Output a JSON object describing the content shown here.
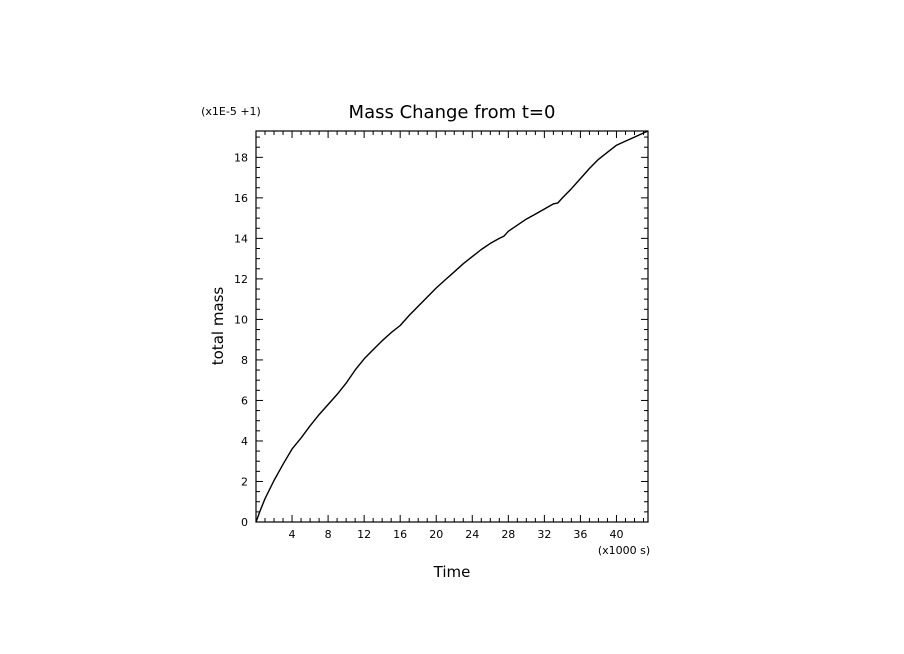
{
  "chart_data": {
    "type": "line",
    "title": "Mass Change from t=0",
    "xlabel": "Time",
    "ylabel": "total mass",
    "x_multiplier_label": "(x1000 s)",
    "y_multiplier_label": "(x1E-5 +1)",
    "xlim": [
      0,
      43.5
    ],
    "ylim": [
      0,
      19.3
    ],
    "x_ticks": [
      4,
      8,
      12,
      16,
      20,
      24,
      28,
      32,
      36,
      40
    ],
    "x_tick_labels": [
      "4",
      "8",
      "12",
      "16",
      "20",
      "24",
      "28",
      "32",
      "36",
      "40"
    ],
    "y_ticks": [
      0,
      2,
      4,
      6,
      8,
      10,
      12,
      14,
      16,
      18
    ],
    "y_tick_labels": [
      "0",
      "2",
      "4",
      "6",
      "8",
      "10",
      "12",
      "14",
      "16",
      "18"
    ],
    "grid": false,
    "series": [
      {
        "x": [
          0,
          0.5,
          1,
          2,
          3,
          4,
          5,
          6,
          7,
          8,
          9,
          10,
          11,
          12,
          13,
          14,
          15,
          16,
          17,
          18,
          19,
          20,
          21,
          22,
          23,
          24,
          25,
          26,
          27,
          27.5,
          28,
          29,
          30,
          31,
          32,
          33,
          33.5,
          34,
          35,
          36,
          37,
          38,
          39,
          40,
          41,
          42,
          43,
          43.5
        ],
        "values": [
          0,
          0.6,
          1.15,
          2.05,
          2.85,
          3.6,
          4.15,
          4.75,
          5.3,
          5.8,
          6.3,
          6.85,
          7.5,
          8.05,
          8.5,
          8.95,
          9.35,
          9.7,
          10.2,
          10.65,
          11.1,
          11.55,
          11.95,
          12.35,
          12.75,
          13.1,
          13.45,
          13.75,
          14.0,
          14.1,
          14.35,
          14.65,
          14.95,
          15.2,
          15.45,
          15.7,
          15.75,
          16.0,
          16.45,
          16.95,
          17.45,
          17.9,
          18.25,
          18.6,
          18.8,
          19.0,
          19.2,
          19.3
        ]
      }
    ]
  }
}
